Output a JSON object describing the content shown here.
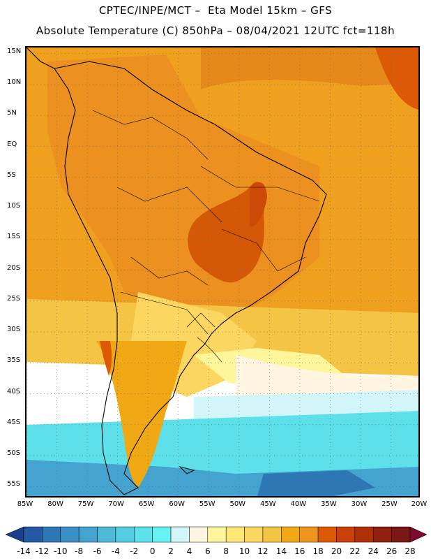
{
  "header": {
    "line1": "CPTEC/INPE/MCT –  Eta Model 15km – GFS",
    "line2": "Absolute Temperature (C) 850hPa – 08/04/2021 12UTC fct=118h"
  },
  "map": {
    "region": "South America",
    "lon_range": [
      -85,
      -20
    ],
    "lat_range": [
      -57,
      16
    ],
    "lat_ticks": [
      {
        "value": 15,
        "label": "15N"
      },
      {
        "value": 10,
        "label": "10N"
      },
      {
        "value": 5,
        "label": "5N"
      },
      {
        "value": 0,
        "label": "EQ"
      },
      {
        "value": -5,
        "label": "5S"
      },
      {
        "value": -10,
        "label": "10S"
      },
      {
        "value": -15,
        "label": "15S"
      },
      {
        "value": -20,
        "label": "20S"
      },
      {
        "value": -25,
        "label": "25S"
      },
      {
        "value": -30,
        "label": "30S"
      },
      {
        "value": -35,
        "label": "35S"
      },
      {
        "value": -40,
        "label": "40S"
      },
      {
        "value": -45,
        "label": "45S"
      },
      {
        "value": -50,
        "label": "50S"
      },
      {
        "value": -55,
        "label": "55S"
      }
    ],
    "lon_ticks": [
      {
        "value": -85,
        "label": "85W"
      },
      {
        "value": -80,
        "label": "80W"
      },
      {
        "value": -75,
        "label": "75W"
      },
      {
        "value": -70,
        "label": "70W"
      },
      {
        "value": -65,
        "label": "65W"
      },
      {
        "value": -60,
        "label": "60W"
      },
      {
        "value": -55,
        "label": "55W"
      },
      {
        "value": -50,
        "label": "50W"
      },
      {
        "value": -45,
        "label": "45W"
      },
      {
        "value": -40,
        "label": "40W"
      },
      {
        "value": -35,
        "label": "35W"
      },
      {
        "value": -30,
        "label": "30W"
      },
      {
        "value": -25,
        "label": "25W"
      },
      {
        "value": -20,
        "label": "20W"
      }
    ]
  },
  "colorbar": {
    "labels": [
      "-14",
      "-12",
      "-10",
      "-8",
      "-6",
      "-4",
      "-2",
      "0",
      "2",
      "4",
      "6",
      "8",
      "10",
      "12",
      "14",
      "16",
      "18",
      "20",
      "22",
      "24",
      "26",
      "28"
    ],
    "colors": [
      "#1a3f8f",
      "#235aa3",
      "#2e77b5",
      "#3a8fc4",
      "#45a3cf",
      "#4fb9d9",
      "#55cce2",
      "#5de0ea",
      "#66f2f2",
      "#d2f5fa",
      "#fff5e0",
      "#fff59a",
      "#ffe676",
      "#fbd660",
      "#f4c545",
      "#f0a915",
      "#ee9520",
      "#dc5a06",
      "#c8400a",
      "#b03008",
      "#902010",
      "#7a1818",
      "#7a0a2e"
    ]
  },
  "colors": {
    "grid": "#666666",
    "coast": "#000000"
  }
}
